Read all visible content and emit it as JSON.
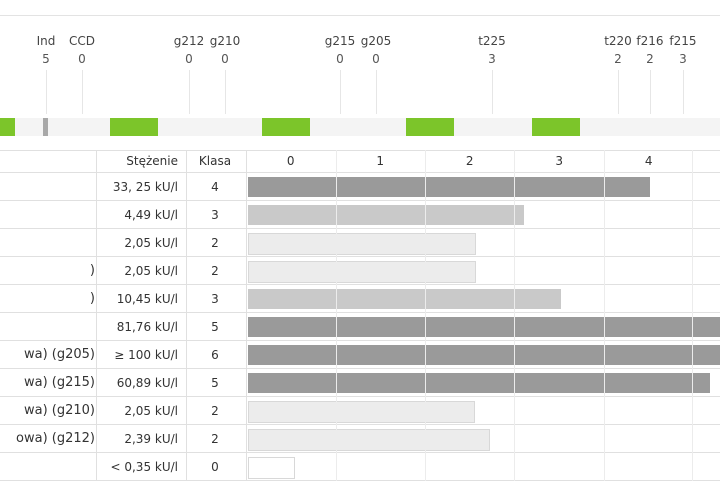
{
  "allergen_columns": [
    {
      "code": "Ind",
      "value": "5"
    },
    {
      "code": "CCD",
      "value": "0"
    },
    {
      "code": "g212",
      "value": "0"
    },
    {
      "code": "g210",
      "value": "0"
    },
    {
      "code": "g215",
      "value": "0"
    },
    {
      "code": "g205",
      "value": "0"
    },
    {
      "code": "t225",
      "value": "3"
    },
    {
      "code": "t220",
      "value": "2"
    },
    {
      "code": "f216",
      "value": "2"
    },
    {
      "code": "f215",
      "value": "3"
    }
  ],
  "table": {
    "headers": {
      "concentration": "Stężenie",
      "class": "Klasa"
    },
    "scale_labels": [
      "0",
      "1",
      "2",
      "3",
      "4"
    ],
    "rows": [
      {
        "label": "",
        "concentration": "33, 25 kU/l",
        "class": "4",
        "class_value": 4.0
      },
      {
        "label": "",
        "concentration": "4,49 kU/l",
        "class": "3",
        "class_value": 3.0
      },
      {
        "label": "",
        "concentration": "2,05 kU/l",
        "class": "2",
        "class_value": 2.0
      },
      {
        "label": ")",
        "concentration": "2,05 kU/l",
        "class": "2",
        "class_value": 2.0
      },
      {
        "label": ")",
        "concentration": "10,45 kU/l",
        "class": "3",
        "class_value": 3.0
      },
      {
        "label": "",
        "concentration": "81,76 kU/l",
        "class": "5",
        "class_value": 5.0
      },
      {
        "label": "wa) (g205)",
        "concentration": "≥ 100 kU/l",
        "class": "6",
        "class_value": 6.0
      },
      {
        "label": "wa) (g215)",
        "concentration": "60,89 kU/l",
        "class": "5",
        "class_value": 5.0
      },
      {
        "label": "wa) (g210)",
        "concentration": "2,05 kU/l",
        "class": "2",
        "class_value": 2.0
      },
      {
        "label": "owa) (g212)",
        "concentration": "2,39 kU/l",
        "class": "2",
        "class_value": 2.0
      },
      {
        "label": "",
        "concentration": "< 0,35 kU/l",
        "class": "0",
        "class_value": 0.0
      }
    ]
  },
  "colors": {
    "class_0": "#ffffff",
    "class_2": "#ececec",
    "class_3": "#c9c9c9",
    "class_4": "#9a9a9a",
    "class_5": "#9a9a9a",
    "class_6": "#9a9a9a",
    "accent_green": "#7cc52a",
    "strip_gray": "#a8a8a8"
  }
}
